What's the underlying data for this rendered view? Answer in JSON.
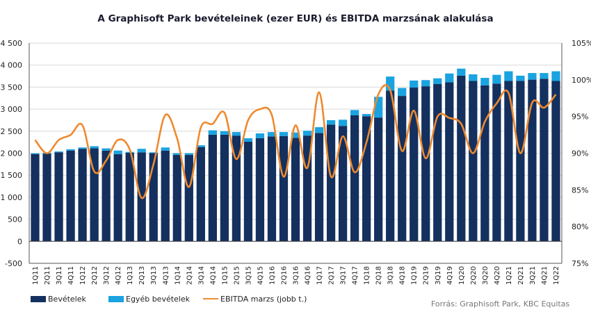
{
  "chart_data": {
    "type": "bar",
    "title": "A Graphisoft Park bevételeinek  (ezer EUR) és EBITDA marzsának alakulása",
    "source": "Forrás: Graphisoft Park, KBC Equitas",
    "stacked": true,
    "categories": [
      "1Q11",
      "2Q11",
      "3Q11",
      "4Q11",
      "1Q12",
      "2Q12",
      "3Q12",
      "4Q12",
      "1Q13",
      "2Q13",
      "3Q13",
      "4Q13",
      "1Q14",
      "2Q14",
      "3Q14",
      "4Q14",
      "1Q15",
      "2Q15",
      "3Q15",
      "4Q15",
      "1Q16",
      "2Q16",
      "3Q16",
      "4Q16",
      "1Q17",
      "2Q17",
      "3Q17",
      "4Q17",
      "1Q18",
      "2Q18",
      "3Q18",
      "4Q18",
      "1Q19",
      "2Q19",
      "3Q19",
      "4Q19",
      "1Q20",
      "2Q20",
      "3Q20",
      "4Q20",
      "1Q21",
      "2Q21",
      "3Q21",
      "4Q21",
      "1Q22"
    ],
    "series": [
      {
        "name": "Bevételek",
        "type": "bar",
        "axis": "left",
        "color": "#14305e",
        "values": [
          1980,
          1990,
          2020,
          2060,
          2100,
          2110,
          2060,
          1980,
          2010,
          2020,
          2000,
          2060,
          1960,
          1960,
          2140,
          2420,
          2420,
          2400,
          2260,
          2340,
          2380,
          2390,
          2350,
          2400,
          2460,
          2650,
          2620,
          2860,
          2840,
          2810,
          3420,
          3300,
          3490,
          3520,
          3570,
          3610,
          3760,
          3640,
          3540,
          3580,
          3640,
          3640,
          3670,
          3690,
          3640
        ]
      },
      {
        "name": "Egyéb bevételek",
        "type": "bar",
        "axis": "left",
        "color": "#1aa3e0",
        "values": [
          20,
          20,
          20,
          30,
          30,
          50,
          50,
          80,
          20,
          80,
          20,
          70,
          40,
          40,
          40,
          100,
          80,
          80,
          80,
          110,
          100,
          90,
          120,
          110,
          130,
          100,
          140,
          120,
          50,
          470,
          320,
          180,
          160,
          140,
          130,
          200,
          160,
          150,
          170,
          200,
          220,
          120,
          150,
          130,
          220
        ]
      },
      {
        "name": "EBITDA marzs (jobb t.)",
        "type": "line",
        "axis": "right",
        "color": "#ee8a2e",
        "values": [
          91.8,
          90.0,
          91.8,
          92.5,
          93.8,
          87.5,
          89.0,
          91.8,
          90.5,
          83.9,
          88.5,
          95.2,
          92.0,
          85.4,
          93.5,
          94.0,
          95.5,
          89.2,
          94.5,
          96.0,
          95.2,
          86.8,
          93.8,
          88.0,
          98.3,
          86.8,
          92.3,
          87.4,
          91.5,
          98.0,
          98.6,
          90.3,
          95.8,
          89.3,
          95.0,
          94.8,
          94.0,
          90.0,
          94.3,
          96.8,
          98.2,
          90.0,
          96.9,
          96.2,
          98.0
        ]
      }
    ],
    "y_left": {
      "min": -500,
      "max": 4500,
      "step": 500,
      "ticks": [
        "-500",
        "0",
        "500",
        "1 000",
        "1 500",
        "2 000",
        "2 500",
        "3 000",
        "3 500",
        "4 000",
        "4 500"
      ]
    },
    "y_right": {
      "min": 75,
      "max": 105,
      "step": 5,
      "ticks": [
        "75%",
        "80%",
        "85%",
        "90%",
        "95%",
        "100%",
        "105%"
      ]
    },
    "grid": true,
    "legend_position": "bottom-left"
  }
}
